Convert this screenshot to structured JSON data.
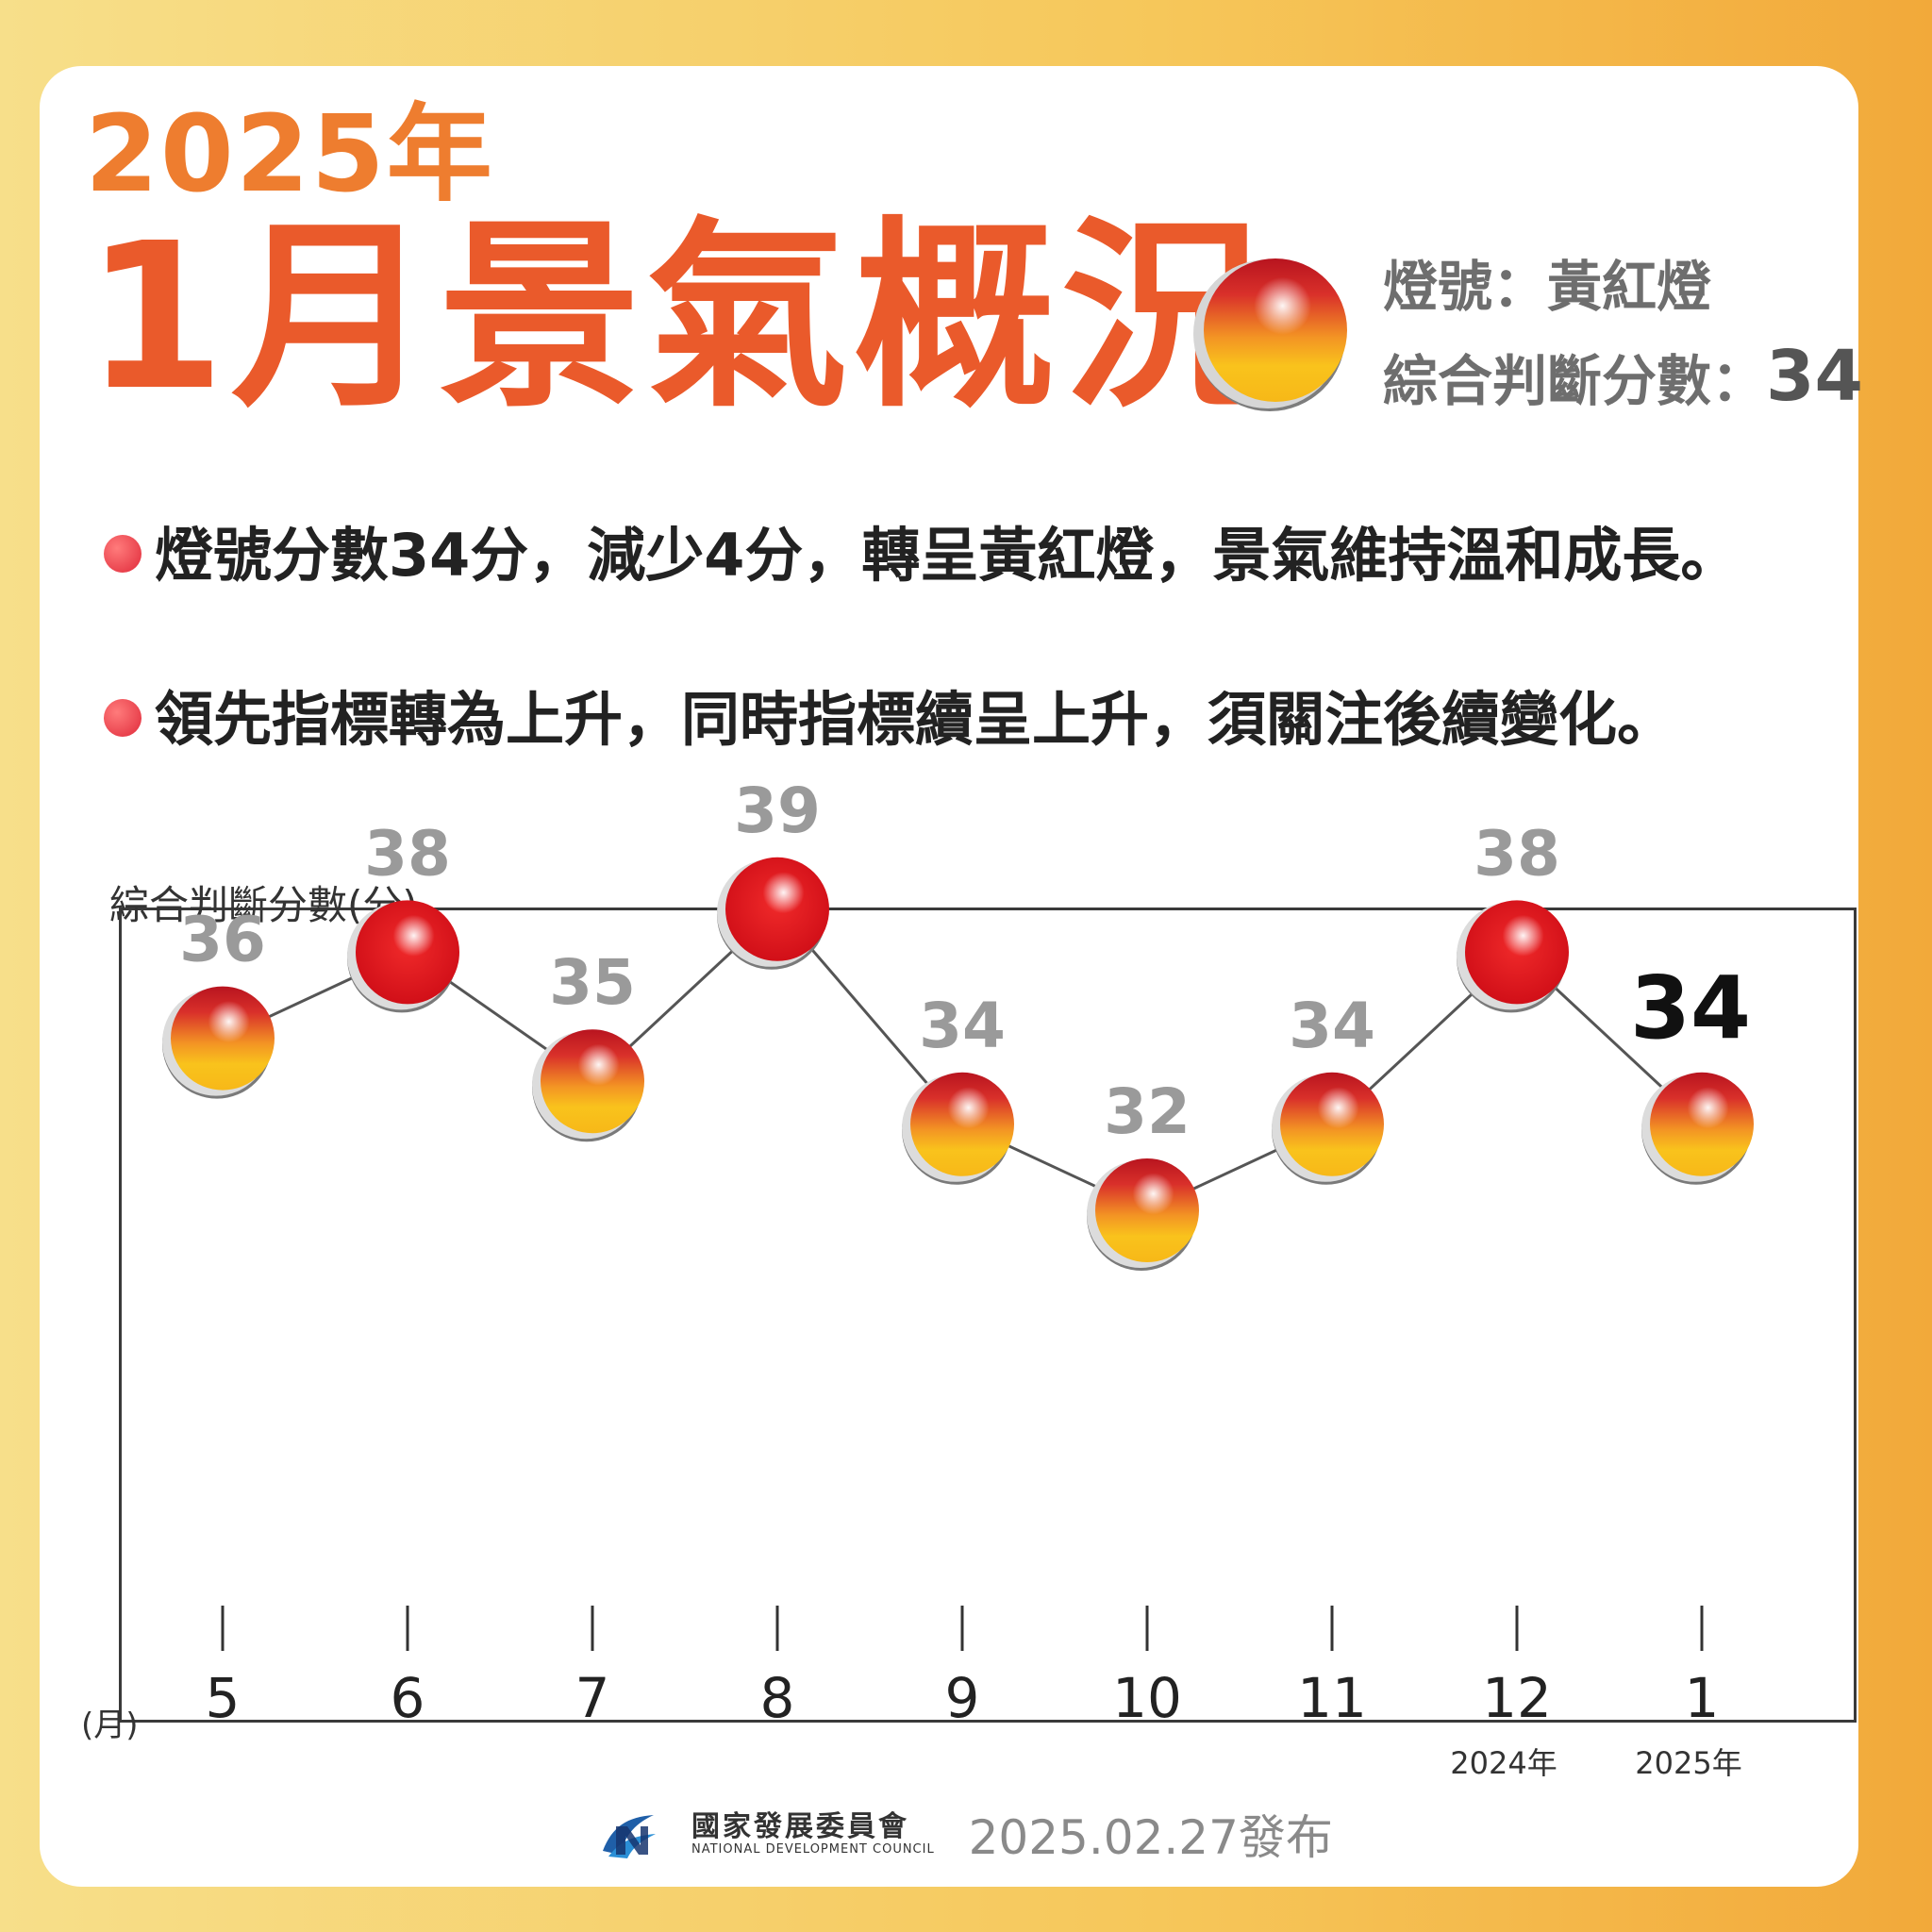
{
  "header": {
    "year_title": "2025年",
    "main_title": "1月景氣概況",
    "signal_label": "燈號：黃紅燈",
    "score_label": "綜合判斷分數：",
    "score_value": "34"
  },
  "bullets": [
    "燈號分數34分，減少4分，轉呈黃紅燈，景氣維持溫和成長。",
    "領先指標轉為上升，同時指標續呈上升，須關注後續變化。"
  ],
  "colors": {
    "red_lamp": "#e3131b",
    "yellow_red_lamp_top": "#c7202b",
    "yellow_red_lamp_bottom": "#f7c21b",
    "title_orange": "#ea5a2b"
  },
  "chart_data": {
    "type": "line",
    "ylabel": "綜合判斷分數(分)",
    "xunit": "(月)",
    "categories": [
      "5",
      "6",
      "7",
      "8",
      "9",
      "10",
      "11",
      "12",
      "1"
    ],
    "values": [
      36,
      38,
      35,
      39,
      34,
      32,
      34,
      38,
      34
    ],
    "lamp_types": [
      "yellow-red",
      "red",
      "yellow-red",
      "red",
      "yellow-red",
      "yellow-red",
      "yellow-red",
      "red",
      "yellow-red"
    ],
    "year_labels": [
      {
        "category": "12",
        "label": "2024年"
      },
      {
        "category": "1",
        "label": "2025年"
      }
    ],
    "highlight_last": true
  },
  "footer": {
    "org_zh": "國家發展委員會",
    "org_en": "NATIONAL DEVELOPMENT COUNCIL",
    "publish_date": "2025.02.27發布"
  }
}
